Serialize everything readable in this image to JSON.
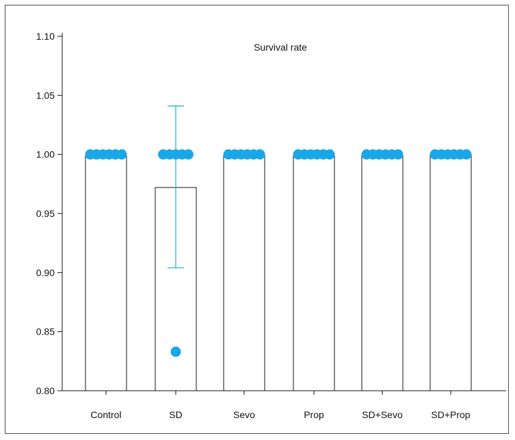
{
  "chart_data": {
    "type": "bar",
    "title": "Survival rate",
    "xlabel": "",
    "ylabel": "",
    "categories": [
      "Control",
      "SD",
      "Sevo",
      "Prop",
      "SD+Sevo",
      "SD+Prop"
    ],
    "values": [
      1.0,
      0.972,
      1.0,
      1.0,
      1.0,
      1.0
    ],
    "error_bars": [
      null,
      {
        "upper": 1.041,
        "lower": 0.904
      },
      null,
      null,
      null,
      null
    ],
    "points": [
      [
        1,
        1,
        1,
        1,
        1,
        1
      ],
      [
        1,
        1,
        1,
        1,
        1,
        0.833
      ],
      [
        1,
        1,
        1,
        1,
        1,
        1
      ],
      [
        1,
        1,
        1,
        1,
        1,
        1
      ],
      [
        1,
        1,
        1,
        1,
        1,
        1
      ],
      [
        1,
        1,
        1,
        1,
        1,
        1
      ]
    ],
    "ylim": [
      0.8,
      1.1
    ],
    "yticks": [
      "0.80",
      "0.85",
      "0.90",
      "0.95",
      "1.00",
      "1.05",
      "1.10"
    ],
    "grid": false,
    "point_color": "#1aa7e8",
    "bar_fill": "#ffffff",
    "bar_stroke": "#111111"
  }
}
